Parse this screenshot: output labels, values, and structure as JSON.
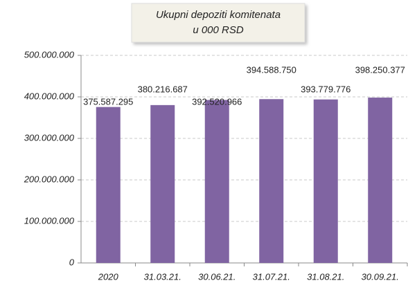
{
  "chart_data": {
    "type": "bar",
    "title": "Ukupni depoziti komitenata",
    "subtitle": "u 000 RSD",
    "categories": [
      "2020",
      "31.03.21.",
      "30.06.21.",
      "31.07.21.",
      "31.08.21.",
      "30.09.21."
    ],
    "values": [
      375587295,
      380216687,
      392520966,
      394588750,
      393779776,
      398250377
    ],
    "value_labels": [
      "375.587.295",
      "380.216.687",
      "392.520.966",
      "394.588.750",
      "393.779.776",
      "398.250.377"
    ],
    "color": "#8064a2",
    "ylim": [
      0,
      500000000
    ],
    "yticks": [
      0,
      {
        "value": 100000000,
        "label": "100.000.000"
      },
      {
        "value": 200000000,
        "label": "200.000.000"
      },
      {
        "value": 300000000,
        "label": "300.000.000"
      },
      {
        "value": 400000000,
        "label": "400.000.000"
      },
      {
        "value": 500000000,
        "label": "500.000.000"
      }
    ],
    "grid": true
  }
}
